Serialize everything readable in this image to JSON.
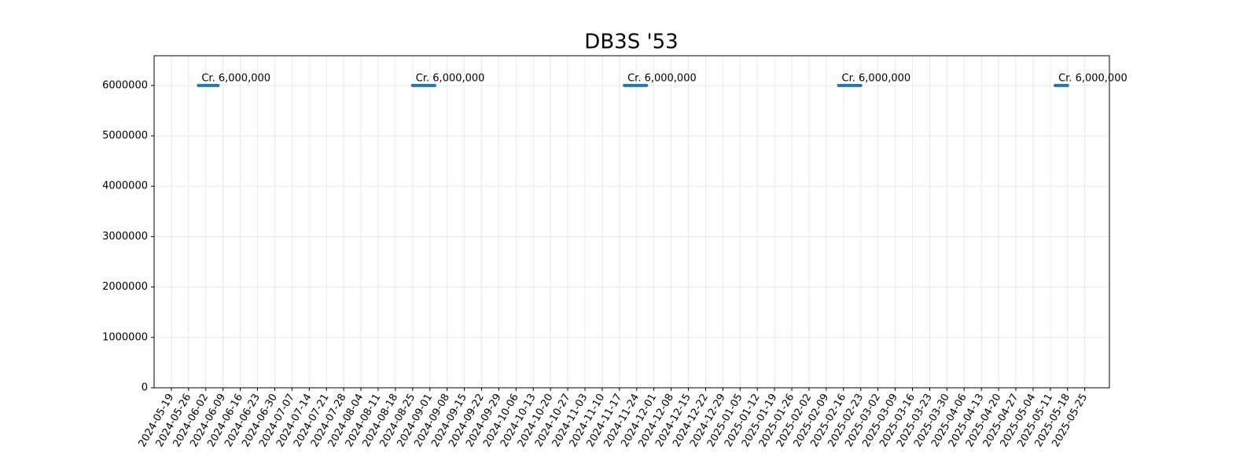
{
  "chart_data": {
    "type": "line",
    "title": "DB3S '53",
    "series": [
      {
        "color": "#1f77b4",
        "x": [
          "2024-05-30",
          "2024-06-07"
        ],
        "values": [
          6000000,
          6000000
        ]
      },
      {
        "color": "#1f77b4",
        "x": [
          "2024-08-25",
          "2024-09-03"
        ],
        "values": [
          6000000,
          6000000
        ]
      },
      {
        "color": "#1f77b4",
        "x": [
          "2024-11-19",
          "2024-11-28"
        ],
        "values": [
          6000000,
          6000000
        ]
      },
      {
        "color": "#1f77b4",
        "x": [
          "2025-02-14",
          "2025-02-23"
        ],
        "values": [
          6000000,
          6000000
        ]
      },
      {
        "color": "#1f77b4",
        "x": [
          "2025-05-13",
          "2025-05-18"
        ],
        "values": [
          6000000,
          6000000
        ]
      }
    ],
    "annotations": [
      {
        "text": "Cr. 6,000,000",
        "x": "2024-05-30",
        "y": 6000000
      },
      {
        "text": "Cr. 6,000,000",
        "x": "2024-08-25",
        "y": 6000000
      },
      {
        "text": "Cr. 6,000,000",
        "x": "2024-11-19",
        "y": 6000000
      },
      {
        "text": "Cr. 6,000,000",
        "x": "2025-02-14",
        "y": 6000000
      },
      {
        "text": "Cr. 6,000,000",
        "x": "2025-05-13",
        "y": 6000000
      }
    ],
    "xlim": [
      "2024-05-12",
      "2025-06-04"
    ],
    "xticks": [
      "2024-05-19",
      "2024-05-26",
      "2024-06-02",
      "2024-06-09",
      "2024-06-16",
      "2024-06-23",
      "2024-06-30",
      "2024-07-07",
      "2024-07-14",
      "2024-07-21",
      "2024-07-28",
      "2024-08-04",
      "2024-08-11",
      "2024-08-18",
      "2024-08-25",
      "2024-09-01",
      "2024-09-08",
      "2024-09-15",
      "2024-09-22",
      "2024-09-29",
      "2024-10-06",
      "2024-10-13",
      "2024-10-20",
      "2024-10-27",
      "2024-11-03",
      "2024-11-10",
      "2024-11-17",
      "2024-11-24",
      "2024-12-01",
      "2024-12-08",
      "2024-12-15",
      "2024-12-22",
      "2024-12-29",
      "2025-01-05",
      "2025-01-12",
      "2025-01-19",
      "2025-01-26",
      "2025-02-02",
      "2025-02-09",
      "2025-02-16",
      "2025-02-23",
      "2025-03-02",
      "2025-03-09",
      "2025-03-16",
      "2025-03-23",
      "2025-03-30",
      "2025-04-06",
      "2025-04-13",
      "2025-04-20",
      "2025-04-27",
      "2025-05-04",
      "2025-05-11",
      "2025-05-18",
      "2025-05-25"
    ],
    "ylim": [
      0,
      6590000
    ],
    "yticks": [
      0,
      1000000,
      2000000,
      3000000,
      4000000,
      5000000,
      6000000
    ],
    "grid": true
  }
}
